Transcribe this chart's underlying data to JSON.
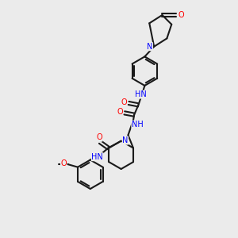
{
  "bg_color": "#ebebeb",
  "bond_color": "#1a1a1a",
  "N_color": "#0000ff",
  "O_color": "#ff0000",
  "line_width": 1.5,
  "fig_size": [
    3.0,
    3.0
  ],
  "dpi": 100,
  "xlim": [
    0,
    10
  ],
  "ylim": [
    0,
    10
  ]
}
